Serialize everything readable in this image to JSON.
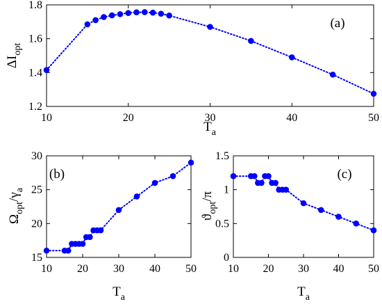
{
  "chart_data": [
    {
      "type": "line",
      "panel_label": "(a)",
      "xlabel": "T",
      "xlabel_sub": "a",
      "ylabel": "ΔI",
      "ylabel_sub": "opt",
      "ylabel_suffix": "",
      "ylabel_suffix_sub": "",
      "xlim": [
        10,
        50
      ],
      "ylim": [
        1.2,
        1.8
      ],
      "xticks": [
        10,
        20,
        30,
        40,
        50
      ],
      "yticks": [
        1.2,
        1.4,
        1.6,
        1.8
      ],
      "ytick_labels": [
        "1.2",
        "1.4",
        "1.6",
        "1.8"
      ],
      "grid": false,
      "line_style": "dotted",
      "marker": "circle",
      "color": "#0000ff",
      "series": [
        {
          "x": [
            10,
            15,
            16,
            17,
            18,
            19,
            20,
            21,
            22,
            23,
            24,
            25,
            30,
            35,
            40,
            45,
            50
          ],
          "y": [
            1.415,
            1.685,
            1.71,
            1.728,
            1.738,
            1.745,
            1.752,
            1.756,
            1.757,
            1.754,
            1.748,
            1.737,
            1.67,
            1.587,
            1.49,
            1.388,
            1.275
          ]
        }
      ]
    },
    {
      "type": "line",
      "panel_label": "(b)",
      "xlabel": "T",
      "xlabel_sub": "a",
      "ylabel": "Ω",
      "ylabel_sub": "opt",
      "ylabel_suffix": "/γ",
      "ylabel_suffix_sub": "a",
      "xlim": [
        10,
        50
      ],
      "ylim": [
        15,
        30
      ],
      "xticks": [
        10,
        20,
        30,
        40,
        50
      ],
      "yticks": [
        15,
        20,
        25,
        30
      ],
      "ytick_labels": [
        "15",
        "20",
        "25",
        "30"
      ],
      "grid": false,
      "line_style": "dotted",
      "marker": "circle",
      "color": "#0000ff",
      "series": [
        {
          "x": [
            10,
            15,
            16,
            17,
            18,
            19,
            20,
            21,
            22,
            23,
            24,
            25,
            30,
            35,
            40,
            45,
            50
          ],
          "y": [
            16,
            16,
            16,
            17,
            17,
            17,
            17,
            18,
            18,
            19,
            19,
            19,
            22,
            24,
            26,
            27,
            29
          ]
        }
      ]
    },
    {
      "type": "line",
      "panel_label": "(c)",
      "xlabel": "T",
      "xlabel_sub": "a",
      "ylabel": "ϑ",
      "ylabel_sub": "opt",
      "ylabel_suffix": "/π",
      "ylabel_suffix_sub": "",
      "xlim": [
        10,
        50
      ],
      "ylim": [
        0,
        1.5
      ],
      "xticks": [
        10,
        20,
        30,
        40,
        50
      ],
      "yticks": [
        0,
        0.5,
        1,
        1.5
      ],
      "ytick_labels": [
        "0",
        "0.5",
        "1",
        "1.5"
      ],
      "grid": false,
      "line_style": "dotted",
      "marker": "circle",
      "color": "#0000ff",
      "series": [
        {
          "x": [
            10,
            15,
            16,
            17,
            18,
            19,
            20,
            21,
            22,
            23,
            24,
            25,
            30,
            35,
            40,
            45,
            50
          ],
          "y": [
            1.2,
            1.2,
            1.2,
            1.1,
            1.1,
            1.2,
            1.2,
            1.1,
            1.1,
            1.0,
            1.0,
            1.0,
            0.8,
            0.7,
            0.6,
            0.5,
            0.4
          ]
        }
      ]
    }
  ]
}
